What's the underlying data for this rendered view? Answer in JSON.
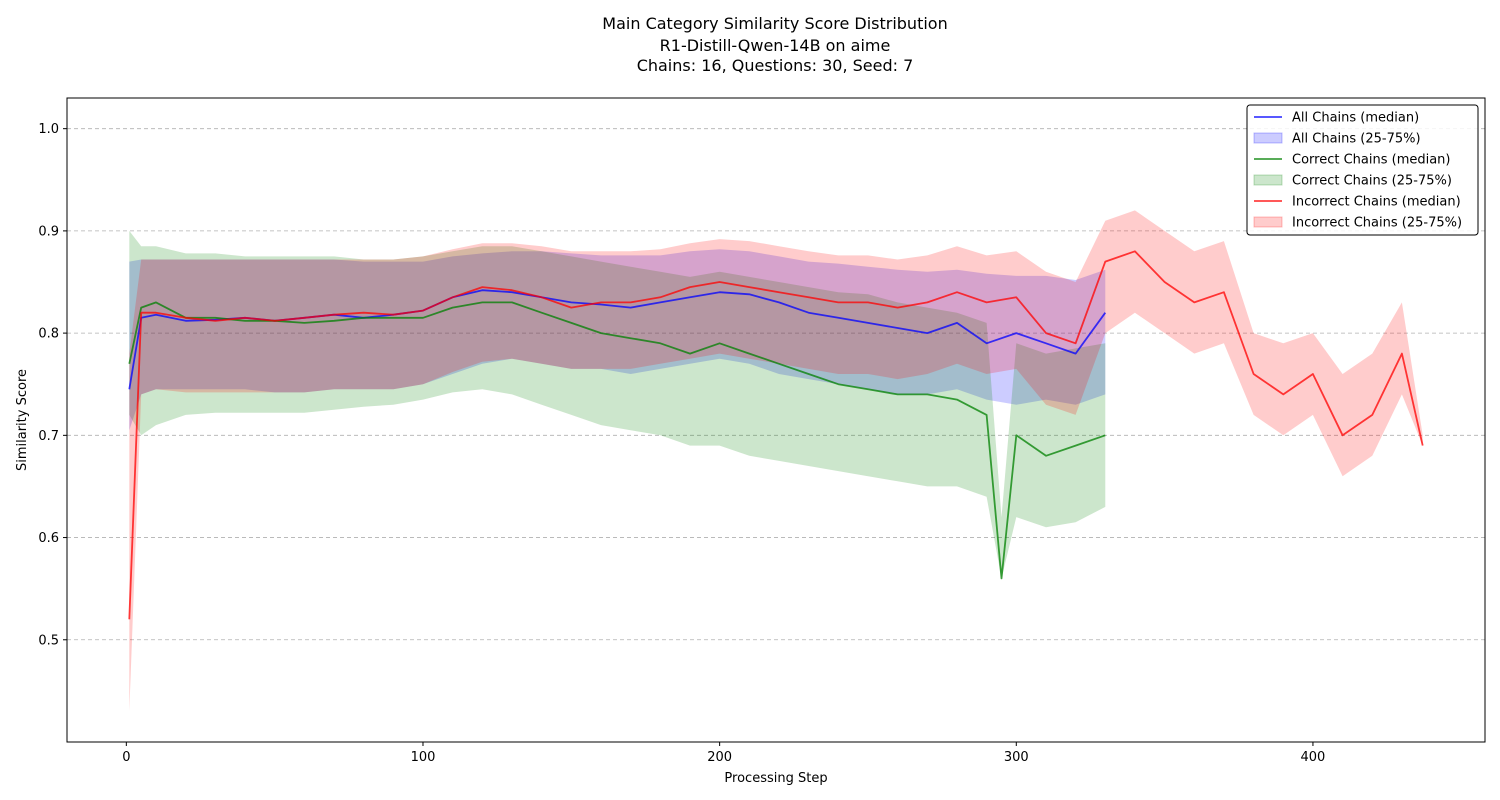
{
  "chart_data": {
    "type": "line",
    "title_lines": [
      "Main Category Similarity Score Distribution",
      "R1-Distill-Qwen-14B on aime",
      "Chains: 16, Questions: 30, Seed: 7"
    ],
    "xlabel": "Processing Step",
    "ylabel": "Similarity Score",
    "xlim": [
      -20,
      458
    ],
    "ylim": [
      0.4,
      1.03
    ],
    "xticks": [
      0,
      100,
      200,
      300,
      400
    ],
    "yticks": [
      0.5,
      0.6,
      0.7,
      0.8,
      0.9,
      1.0
    ],
    "grid": "horizontal dashed",
    "legend_position": "top-right",
    "series": [
      {
        "name": "All Chains",
        "color": "#0000ff",
        "median_label": "All Chains (median)",
        "band_label": "All Chains (25-75%)",
        "x": [
          1,
          5,
          10,
          20,
          30,
          40,
          50,
          60,
          70,
          80,
          90,
          100,
          110,
          120,
          130,
          140,
          150,
          160,
          170,
          180,
          190,
          200,
          210,
          220,
          230,
          240,
          250,
          260,
          270,
          280,
          290,
          300,
          310,
          320,
          330
        ],
        "median": [
          0.745,
          0.815,
          0.818,
          0.812,
          0.813,
          0.815,
          0.812,
          0.815,
          0.818,
          0.815,
          0.818,
          0.822,
          0.835,
          0.842,
          0.84,
          0.835,
          0.83,
          0.828,
          0.825,
          0.83,
          0.835,
          0.84,
          0.838,
          0.83,
          0.82,
          0.815,
          0.81,
          0.805,
          0.8,
          0.81,
          0.79,
          0.8,
          0.79,
          0.78,
          0.82
        ],
        "q25": [
          0.705,
          0.74,
          0.745,
          0.745,
          0.745,
          0.745,
          0.742,
          0.742,
          0.745,
          0.745,
          0.745,
          0.75,
          0.76,
          0.77,
          0.775,
          0.77,
          0.765,
          0.765,
          0.76,
          0.765,
          0.77,
          0.775,
          0.77,
          0.76,
          0.755,
          0.75,
          0.745,
          0.74,
          0.74,
          0.745,
          0.735,
          0.73,
          0.735,
          0.73,
          0.74
        ],
        "q75": [
          0.87,
          0.872,
          0.872,
          0.872,
          0.872,
          0.872,
          0.872,
          0.872,
          0.872,
          0.87,
          0.87,
          0.87,
          0.875,
          0.878,
          0.88,
          0.88,
          0.878,
          0.876,
          0.876,
          0.876,
          0.88,
          0.882,
          0.88,
          0.875,
          0.87,
          0.868,
          0.865,
          0.862,
          0.86,
          0.862,
          0.858,
          0.856,
          0.856,
          0.852,
          0.862
        ]
      },
      {
        "name": "Correct Chains",
        "color": "#008000",
        "median_label": "Correct Chains (median)",
        "band_label": "Correct Chains (25-75%)",
        "x": [
          1,
          5,
          10,
          20,
          30,
          40,
          50,
          60,
          70,
          80,
          90,
          100,
          110,
          120,
          130,
          140,
          150,
          160,
          170,
          180,
          190,
          200,
          210,
          220,
          230,
          240,
          250,
          260,
          270,
          280,
          290,
          295,
          300,
          310,
          320,
          330
        ],
        "median": [
          0.77,
          0.825,
          0.83,
          0.815,
          0.815,
          0.812,
          0.812,
          0.81,
          0.812,
          0.815,
          0.815,
          0.815,
          0.825,
          0.83,
          0.83,
          0.82,
          0.81,
          0.8,
          0.795,
          0.79,
          0.78,
          0.79,
          0.78,
          0.77,
          0.76,
          0.75,
          0.745,
          0.74,
          0.74,
          0.735,
          0.72,
          0.56,
          0.7,
          0.68,
          0.69,
          0.7
        ],
        "q25": [
          0.72,
          0.7,
          0.71,
          0.72,
          0.722,
          0.722,
          0.722,
          0.722,
          0.725,
          0.728,
          0.73,
          0.735,
          0.742,
          0.745,
          0.74,
          0.73,
          0.72,
          0.71,
          0.705,
          0.7,
          0.69,
          0.69,
          0.68,
          0.675,
          0.67,
          0.665,
          0.66,
          0.655,
          0.65,
          0.65,
          0.64,
          0.56,
          0.62,
          0.61,
          0.615,
          0.63
        ],
        "q75": [
          0.9,
          0.885,
          0.885,
          0.878,
          0.878,
          0.875,
          0.875,
          0.875,
          0.875,
          0.872,
          0.872,
          0.875,
          0.88,
          0.885,
          0.885,
          0.88,
          0.875,
          0.87,
          0.865,
          0.86,
          0.855,
          0.86,
          0.855,
          0.85,
          0.845,
          0.84,
          0.838,
          0.83,
          0.825,
          0.82,
          0.81,
          0.62,
          0.79,
          0.78,
          0.785,
          0.79
        ]
      },
      {
        "name": "Incorrect Chains",
        "color": "#ff0000",
        "median_label": "Incorrect Chains (median)",
        "band_label": "Incorrect Chains (25-75%)",
        "x": [
          1,
          5,
          10,
          20,
          30,
          40,
          50,
          60,
          70,
          80,
          90,
          100,
          110,
          120,
          130,
          140,
          150,
          160,
          170,
          180,
          190,
          200,
          210,
          220,
          230,
          240,
          250,
          260,
          270,
          280,
          290,
          300,
          310,
          320,
          330,
          340,
          350,
          360,
          370,
          380,
          390,
          400,
          410,
          420,
          430,
          437
        ],
        "median": [
          0.52,
          0.82,
          0.82,
          0.815,
          0.812,
          0.815,
          0.812,
          0.815,
          0.818,
          0.82,
          0.818,
          0.822,
          0.835,
          0.845,
          0.842,
          0.835,
          0.825,
          0.83,
          0.83,
          0.835,
          0.845,
          0.85,
          0.845,
          0.84,
          0.835,
          0.83,
          0.83,
          0.825,
          0.83,
          0.84,
          0.83,
          0.835,
          0.8,
          0.79,
          0.87,
          0.88,
          0.85,
          0.83,
          0.84,
          0.76,
          0.74,
          0.76,
          0.7,
          0.72,
          0.78,
          0.69
        ],
        "q25": [
          0.43,
          0.74,
          0.745,
          0.742,
          0.742,
          0.742,
          0.742,
          0.742,
          0.745,
          0.745,
          0.745,
          0.75,
          0.762,
          0.772,
          0.775,
          0.77,
          0.765,
          0.765,
          0.765,
          0.77,
          0.775,
          0.78,
          0.775,
          0.77,
          0.765,
          0.76,
          0.76,
          0.755,
          0.76,
          0.77,
          0.76,
          0.765,
          0.73,
          0.72,
          0.8,
          0.82,
          0.8,
          0.78,
          0.79,
          0.72,
          0.7,
          0.72,
          0.66,
          0.68,
          0.74,
          0.69
        ],
        "q75": [
          0.78,
          0.872,
          0.872,
          0.872,
          0.872,
          0.872,
          0.872,
          0.872,
          0.872,
          0.872,
          0.872,
          0.875,
          0.882,
          0.888,
          0.888,
          0.885,
          0.88,
          0.88,
          0.88,
          0.882,
          0.888,
          0.892,
          0.89,
          0.885,
          0.88,
          0.876,
          0.876,
          0.872,
          0.876,
          0.885,
          0.876,
          0.88,
          0.86,
          0.85,
          0.91,
          0.92,
          0.9,
          0.88,
          0.89,
          0.8,
          0.79,
          0.8,
          0.76,
          0.78,
          0.83,
          0.7
        ]
      }
    ]
  }
}
